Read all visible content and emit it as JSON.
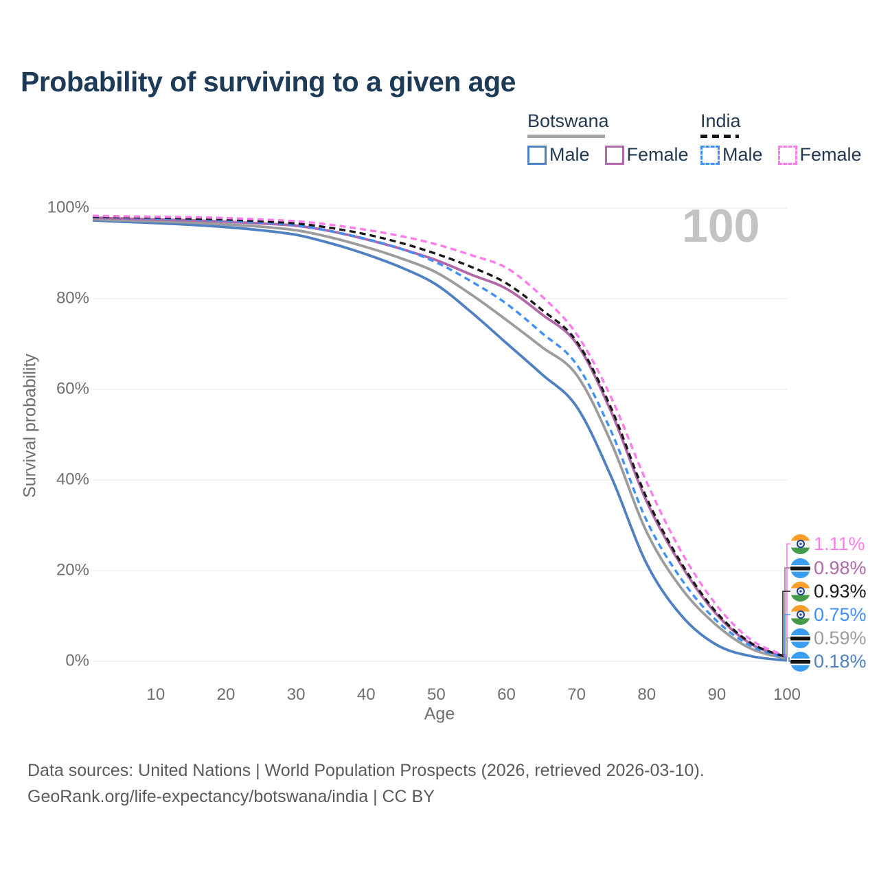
{
  "header": {
    "title": "Probability of surviving to a given age"
  },
  "watermark": "100",
  "legend": {
    "groups": [
      {
        "country": "Botswana",
        "line_style": "solid",
        "underline_color": "#a5a5a5",
        "items": [
          {
            "label": "Male",
            "color": "#4f81c2"
          },
          {
            "label": "Female",
            "color": "#b168a8"
          }
        ]
      },
      {
        "country": "India",
        "line_style": "dashed",
        "underline_color": "#141414",
        "items": [
          {
            "label": "Male",
            "color": "#4190f7"
          },
          {
            "label": "Female",
            "color": "#fc7cec"
          }
        ]
      }
    ]
  },
  "chart_data": {
    "type": "line",
    "title": "Probability of surviving to a given age",
    "xlabel": "Age",
    "ylabel": "Survival probability",
    "xlim": [
      1,
      100
    ],
    "ylim": [
      0,
      100
    ],
    "grid": "horizontal",
    "gridline_color": "#eaeaea",
    "legend_position": "top-right",
    "x": [
      1,
      5,
      10,
      15,
      20,
      25,
      30,
      35,
      40,
      45,
      50,
      55,
      60,
      65,
      70,
      75,
      80,
      85,
      90,
      95,
      100
    ],
    "xticks": [
      {
        "value": 10,
        "label": "10"
      },
      {
        "value": 20,
        "label": "20"
      },
      {
        "value": 30,
        "label": "30"
      },
      {
        "value": 40,
        "label": "40"
      },
      {
        "value": 50,
        "label": "50"
      },
      {
        "value": 60,
        "label": "60"
      },
      {
        "value": 70,
        "label": "70"
      },
      {
        "value": 80,
        "label": "80"
      },
      {
        "value": 90,
        "label": "90"
      },
      {
        "value": 100,
        "label": "100"
      }
    ],
    "yticks": [
      {
        "value": 0,
        "label": "0%"
      },
      {
        "value": 20,
        "label": "20%"
      },
      {
        "value": 40,
        "label": "40%"
      },
      {
        "value": 60,
        "label": "60%"
      },
      {
        "value": 80,
        "label": "80%"
      },
      {
        "value": 100,
        "label": "100%"
      }
    ],
    "series": [
      {
        "id": "botswana_male",
        "name": "Botswana Male",
        "country": "Botswana",
        "sex": "male",
        "style": "solid",
        "color": "#4f81c2",
        "end_label": "0.18%",
        "values": [
          97.3,
          97.0,
          96.7,
          96.3,
          95.8,
          95.1,
          94.1,
          92.2,
          89.8,
          86.9,
          83.1,
          77.0,
          70.2,
          63.4,
          56.2,
          40.5,
          21.5,
          10.0,
          3.6,
          1.1,
          0.18
        ]
      },
      {
        "id": "botswana_all",
        "name": "Botswana",
        "country": "Botswana",
        "sex": "both",
        "style": "solid",
        "color": "#9c9c9c",
        "end_label": "0.59%",
        "values": [
          97.6,
          97.3,
          97.1,
          96.8,
          96.4,
          95.9,
          95.1,
          93.5,
          91.4,
          88.9,
          85.8,
          80.9,
          75.3,
          69.4,
          63.2,
          48.0,
          28.5,
          16.0,
          7.9,
          2.7,
          0.59
        ]
      },
      {
        "id": "botswana_female",
        "name": "Botswana Female",
        "country": "Botswana",
        "sex": "female",
        "style": "solid",
        "color": "#b168a8",
        "end_label": "0.98%",
        "values": [
          97.9,
          97.7,
          97.5,
          97.3,
          97.0,
          96.6,
          96.1,
          94.9,
          93.1,
          91.0,
          88.5,
          85.3,
          82.2,
          76.6,
          70.1,
          54.8,
          35.2,
          21.0,
          10.3,
          3.7,
          0.98
        ]
      },
      {
        "id": "india_male",
        "name": "India Male",
        "country": "India",
        "sex": "male",
        "style": "dashed",
        "color": "#4190f7",
        "end_label": "0.75%",
        "values": [
          98.0,
          97.9,
          97.7,
          97.5,
          97.2,
          96.8,
          96.2,
          94.9,
          93.2,
          91.0,
          88.0,
          83.8,
          78.9,
          72.5,
          65.5,
          50.5,
          31.0,
          18.0,
          8.9,
          3.3,
          0.75
        ]
      },
      {
        "id": "india_all",
        "name": "India",
        "country": "India",
        "sex": "both",
        "style": "dashed",
        "color": "#1a1a1a",
        "end_label": "0.93%",
        "values": [
          98.1,
          98.0,
          97.9,
          97.7,
          97.5,
          97.1,
          96.6,
          95.6,
          94.2,
          92.3,
          89.9,
          87.0,
          83.4,
          77.6,
          70.6,
          55.6,
          36.0,
          21.5,
          10.7,
          3.9,
          0.93
        ]
      },
      {
        "id": "india_female",
        "name": "India Female",
        "country": "India",
        "sex": "female",
        "style": "dashed",
        "color": "#fc7cec",
        "end_label": "1.11%",
        "values": [
          98.3,
          98.2,
          98.1,
          98.0,
          97.8,
          97.5,
          97.1,
          96.3,
          95.2,
          93.8,
          92.0,
          89.6,
          86.8,
          80.6,
          72.2,
          58.0,
          39.5,
          24.0,
          12.3,
          4.6,
          1.11
        ]
      }
    ],
    "annotation": "100"
  },
  "callouts": [
    {
      "flag": "india",
      "series": "india_female",
      "label": "1.11%",
      "color": "#fc7cec"
    },
    {
      "flag": "botswana",
      "series": "botswana_female",
      "label": "0.98%",
      "color": "#b168a8"
    },
    {
      "flag": "india",
      "series": "india_all",
      "label": "0.93%",
      "color": "#1a1a1a"
    },
    {
      "flag": "india",
      "series": "india_male",
      "label": "0.75%",
      "color": "#4190f7"
    },
    {
      "flag": "botswana",
      "series": "botswana_all",
      "label": "0.59%",
      "color": "#9c9c9c"
    },
    {
      "flag": "botswana",
      "series": "botswana_male",
      "label": "0.18%",
      "color": "#4f81c2"
    }
  ],
  "footer": {
    "lines": [
      "Data sources: United Nations | World Population Prospects (2026, retrieved 2026-03-10).",
      "GeoRank.org/life-expectancy/botswana/india | CC BY"
    ]
  }
}
